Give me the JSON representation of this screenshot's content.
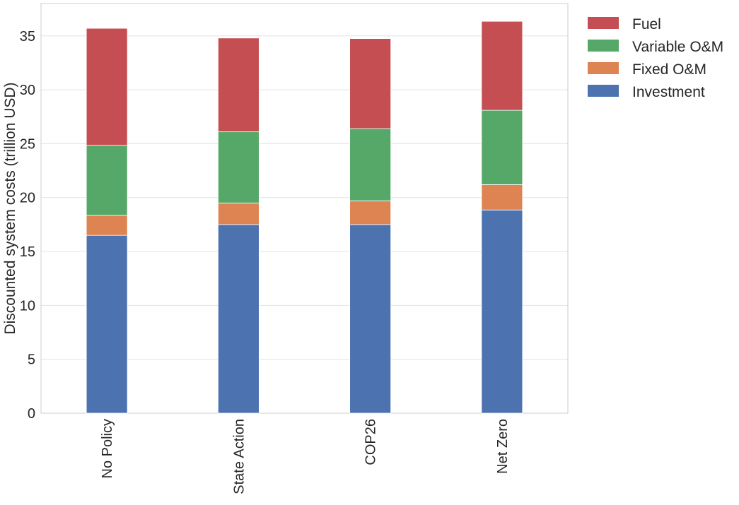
{
  "chart_data": {
    "type": "bar",
    "stacked": true,
    "categories": [
      "No Policy",
      "State Action",
      "COP26",
      "Net Zero"
    ],
    "series": [
      {
        "name": "Investment",
        "color": "#4c72b0",
        "values": [
          16.5,
          17.5,
          17.5,
          18.85
        ]
      },
      {
        "name": "Fixed O&M",
        "color": "#dd8452",
        "values": [
          1.85,
          2.0,
          2.2,
          2.35
        ]
      },
      {
        "name": "Variable O&M",
        "color": "#55a868",
        "values": [
          6.5,
          6.6,
          6.7,
          6.9
        ]
      },
      {
        "name": "Fuel",
        "color": "#c44e52",
        "values": [
          10.85,
          8.7,
          8.35,
          8.25
        ]
      }
    ],
    "ylabel": "Discounted system costs (trillion USD)",
    "xlabel": "",
    "ylim": [
      0,
      38
    ],
    "yticks": [
      0,
      5,
      10,
      15,
      20,
      25,
      30,
      35
    ],
    "grid": "horizontal",
    "legend_position": "outside-top-right",
    "legend_order": [
      "Fuel",
      "Variable O&M",
      "Fixed O&M",
      "Investment"
    ]
  }
}
